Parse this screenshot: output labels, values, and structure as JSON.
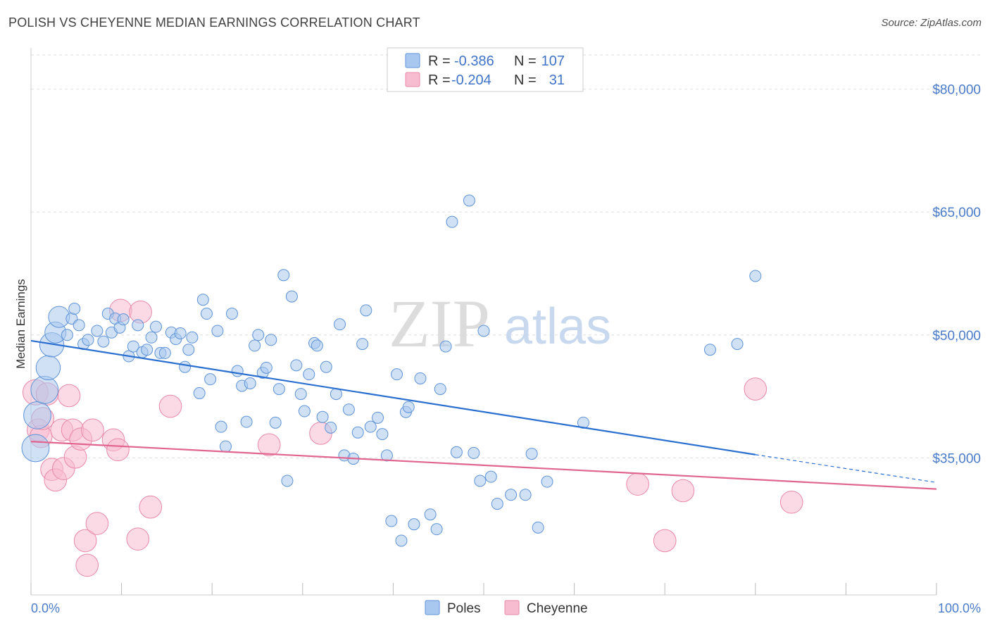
{
  "header": {
    "title": "POLISH VS CHEYENNE MEDIAN EARNINGS CORRELATION CHART",
    "source": "Source: ZipAtlas.com"
  },
  "watermark": {
    "zip": "ZIP",
    "atlas": "atlas"
  },
  "colors": {
    "poles_fill": "#a9c8ef",
    "poles_stroke": "#5e93d8",
    "poles_line": "#2a6fd0",
    "cheyenne_fill": "#f7bcd0",
    "cheyenne_stroke": "#e888a8",
    "cheyenne_line": "#e0658f",
    "tick_color": "#4a7cc9",
    "grid": "#dddddd"
  },
  "legend": {
    "rows": [
      {
        "r_label": "R =",
        "r_value": "-0.386",
        "n_label": "N =",
        "n_value": "107"
      },
      {
        "r_label": "R =",
        "r_value": "-0.204",
        "n_label": "N =",
        "n_value": "31"
      }
    ]
  },
  "chart_data": {
    "type": "scatter",
    "title": "POLISH VS CHEYENNE MEDIAN EARNINGS CORRELATION CHART",
    "xlabel": "",
    "ylabel": "Median Earnings",
    "xlim": [
      0,
      100
    ],
    "ylim": [
      20000,
      84000
    ],
    "x_tick_labels": [
      "0.0%",
      "100.0%"
    ],
    "y_ticks": [
      35000,
      50000,
      65000,
      80000
    ],
    "y_tick_labels": [
      "$35,000",
      "$50,000",
      "$65,000",
      "$80,000"
    ],
    "grid": true,
    "legend_placement": "top-center",
    "series": [
      {
        "name": "Poles",
        "r": -0.386,
        "n": 107,
        "trend": {
          "x_start": 0,
          "y_start": 49300,
          "x_end": 80,
          "y_end": 35400,
          "dashed_to_x": 100,
          "dashed_to_y": 32000
        },
        "points": [
          [
            0.5,
            36200,
            7
          ],
          [
            0.7,
            40200,
            7
          ],
          [
            1.5,
            43300,
            7
          ],
          [
            1.9,
            46000,
            6
          ],
          [
            2.3,
            48800,
            6
          ],
          [
            2.7,
            50300,
            5
          ],
          [
            3.1,
            52200,
            5
          ],
          [
            4.0,
            50000,
            4
          ],
          [
            4.5,
            52000,
            4
          ],
          [
            4.8,
            53200,
            4
          ],
          [
            5.3,
            51200,
            4
          ],
          [
            5.8,
            48900,
            4
          ],
          [
            6.3,
            49400,
            4
          ],
          [
            7.3,
            50500,
            4
          ],
          [
            8.0,
            49200,
            4
          ],
          [
            8.5,
            52600,
            4
          ],
          [
            8.9,
            50300,
            4
          ],
          [
            9.3,
            52000,
            4
          ],
          [
            9.8,
            50900,
            4
          ],
          [
            10.2,
            51900,
            4
          ],
          [
            10.8,
            47400,
            4
          ],
          [
            11.3,
            48600,
            4
          ],
          [
            11.8,
            51200,
            4
          ],
          [
            12.3,
            47900,
            4
          ],
          [
            12.8,
            48200,
            4
          ],
          [
            13.3,
            49700,
            4
          ],
          [
            13.8,
            51000,
            4
          ],
          [
            14.3,
            47800,
            4
          ],
          [
            14.8,
            47800,
            4
          ],
          [
            15.5,
            50300,
            4
          ],
          [
            16.0,
            49500,
            4
          ],
          [
            16.5,
            50200,
            4
          ],
          [
            17.0,
            46100,
            4
          ],
          [
            17.4,
            48200,
            4
          ],
          [
            17.8,
            49700,
            4
          ],
          [
            18.6,
            42900,
            4
          ],
          [
            19.0,
            54300,
            4
          ],
          [
            19.4,
            52600,
            4
          ],
          [
            19.8,
            44600,
            4
          ],
          [
            20.6,
            50500,
            4
          ],
          [
            21.0,
            38800,
            4
          ],
          [
            21.5,
            36400,
            4
          ],
          [
            22.2,
            52600,
            4
          ],
          [
            22.8,
            45600,
            4
          ],
          [
            23.3,
            43800,
            4
          ],
          [
            23.8,
            39400,
            4
          ],
          [
            24.2,
            44100,
            4
          ],
          [
            24.7,
            48700,
            4
          ],
          [
            25.1,
            50000,
            4
          ],
          [
            25.6,
            45400,
            4
          ],
          [
            26.0,
            46000,
            4
          ],
          [
            26.5,
            49400,
            4
          ],
          [
            27.0,
            39300,
            4
          ],
          [
            27.4,
            43400,
            4
          ],
          [
            27.9,
            57300,
            4
          ],
          [
            28.3,
            32200,
            4
          ],
          [
            28.8,
            54700,
            4
          ],
          [
            29.3,
            46300,
            4
          ],
          [
            29.8,
            42800,
            4
          ],
          [
            30.2,
            40700,
            4
          ],
          [
            30.7,
            45200,
            4
          ],
          [
            31.3,
            49000,
            4
          ],
          [
            31.6,
            48700,
            4
          ],
          [
            32.2,
            40000,
            4
          ],
          [
            32.6,
            46100,
            4
          ],
          [
            33.1,
            38700,
            4
          ],
          [
            33.7,
            42800,
            4
          ],
          [
            34.1,
            51300,
            4
          ],
          [
            34.6,
            35300,
            4
          ],
          [
            35.1,
            40900,
            4
          ],
          [
            35.6,
            34900,
            4
          ],
          [
            36.1,
            38100,
            4
          ],
          [
            36.6,
            48900,
            4
          ],
          [
            37.0,
            53000,
            4
          ],
          [
            37.5,
            38800,
            4
          ],
          [
            38.3,
            39900,
            4
          ],
          [
            38.8,
            37900,
            4
          ],
          [
            39.3,
            35300,
            4
          ],
          [
            39.8,
            27300,
            4
          ],
          [
            40.4,
            45200,
            4
          ],
          [
            40.9,
            24900,
            4
          ],
          [
            41.4,
            40600,
            4
          ],
          [
            41.7,
            41200,
            4
          ],
          [
            42.3,
            26900,
            4
          ],
          [
            43.0,
            44700,
            4
          ],
          [
            44.1,
            28100,
            4
          ],
          [
            44.8,
            26300,
            4
          ],
          [
            45.2,
            43400,
            4
          ],
          [
            45.8,
            48600,
            4
          ],
          [
            46.5,
            63800,
            4
          ],
          [
            47.0,
            35700,
            4
          ],
          [
            48.4,
            66400,
            4
          ],
          [
            48.9,
            35600,
            4
          ],
          [
            49.6,
            32200,
            4
          ],
          [
            50.0,
            50500,
            4
          ],
          [
            50.8,
            32700,
            4
          ],
          [
            51.5,
            29400,
            4
          ],
          [
            53.0,
            30500,
            4
          ],
          [
            54.6,
            30500,
            4
          ],
          [
            55.3,
            35500,
            4
          ],
          [
            56.0,
            26500,
            4
          ],
          [
            57.0,
            32100,
            4
          ],
          [
            61.0,
            39300,
            4
          ],
          [
            75.0,
            48200,
            4
          ],
          [
            78.0,
            48900,
            4
          ],
          [
            80.0,
            57200,
            4
          ]
        ]
      },
      {
        "name": "Cheyenne",
        "r": -0.204,
        "n": 31,
        "trend": {
          "x_start": 0,
          "y_start": 37000,
          "x_end": 100,
          "y_end": 31200
        },
        "points": [
          [
            0.5,
            43000,
            5
          ],
          [
            0.8,
            38400,
            4
          ],
          [
            1.1,
            37600,
            4
          ],
          [
            1.3,
            39800,
            4
          ],
          [
            1.8,
            42800,
            4
          ],
          [
            2.3,
            33600,
            4
          ],
          [
            2.7,
            32300,
            4
          ],
          [
            3.4,
            38400,
            4
          ],
          [
            3.6,
            33700,
            4
          ],
          [
            4.2,
            42600,
            4
          ],
          [
            4.6,
            38400,
            4
          ],
          [
            4.9,
            35100,
            4
          ],
          [
            5.5,
            37300,
            4
          ],
          [
            6.0,
            24900,
            4
          ],
          [
            6.2,
            21900,
            4
          ],
          [
            6.8,
            38400,
            4
          ],
          [
            7.3,
            27000,
            4
          ],
          [
            9.1,
            37200,
            4
          ],
          [
            9.6,
            36000,
            4
          ],
          [
            9.9,
            53000,
            4
          ],
          [
            11.8,
            25100,
            4
          ],
          [
            12.1,
            52800,
            4
          ],
          [
            13.2,
            29000,
            4
          ],
          [
            15.4,
            41300,
            4
          ],
          [
            26.3,
            36600,
            4
          ],
          [
            32.0,
            38000,
            4
          ],
          [
            67.0,
            31800,
            4
          ],
          [
            70.0,
            24900,
            4
          ],
          [
            72.0,
            31000,
            4
          ],
          [
            80.0,
            43400,
            4
          ],
          [
            84.0,
            29600,
            4
          ]
        ]
      }
    ]
  }
}
